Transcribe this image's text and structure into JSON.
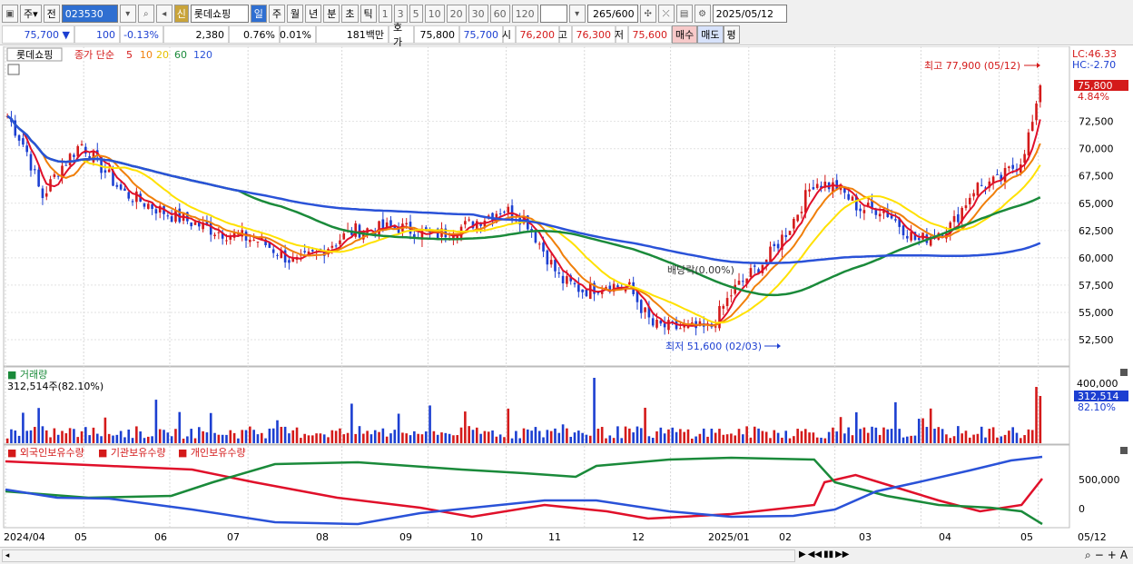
{
  "toolbar": {
    "type_label": "주",
    "all_label": "전",
    "code": "023530",
    "credit_badge": "신",
    "name": "롯데쇼핑",
    "periods": [
      "일",
      "주",
      "월",
      "년",
      "분",
      "초",
      "틱"
    ],
    "active_period": "일",
    "intervals": [
      "1",
      "3",
      "5",
      "10",
      "20",
      "30",
      "60",
      "120"
    ],
    "count": "265/600",
    "date": "2025/05/12"
  },
  "quote": {
    "price": "75,700",
    "change": "100",
    "change_pct": "-0.13%",
    "volume": "2,380",
    "vol_pct": "0.76%",
    "turnover_pct": "0.01%",
    "amount": "181백만",
    "ask_label": "호가",
    "ask": "75,800",
    "bid": "75,700",
    "open_label": "시",
    "open": "76,200",
    "high_label": "고",
    "high": "76,300",
    "low_label": "저",
    "low": "75,600",
    "buy_label": "매수",
    "sell_label": "매도",
    "eval_label": "평"
  },
  "price_panel": {
    "stock_tag": "롯데쇼핑",
    "legend_title": "종가 단순",
    "ma_labels": [
      "5",
      "10",
      "20",
      "60",
      "120"
    ],
    "lc": "LC:46.33",
    "hc": "HC:-2.70",
    "current_price": "75,800",
    "current_pct": "4.84%",
    "max_label": "최고 77,900 (05/12)",
    "min_label": "최저 51,600 (02/03)",
    "dividend_label": "배당락(0.00%)",
    "y_ticks": [
      "72,500",
      "70,000",
      "67,500",
      "65,000",
      "62,500",
      "60,000",
      "57,500",
      "55,000",
      "52,500"
    ]
  },
  "volume_panel": {
    "title": "거래량",
    "value": "312,514주(82.10%)",
    "y_top": "400,000",
    "current": "312,514",
    "current_pct": "82.10%"
  },
  "investor_panel": {
    "legends": [
      "외국인보유수량",
      "기관보유수량",
      "개인보유수량"
    ],
    "y_ticks": [
      "500,000",
      "0"
    ]
  },
  "x_axis": [
    "2024/04",
    "05",
    "06",
    "07",
    "08",
    "09",
    "10",
    "11",
    "12",
    "2025/01",
    "02",
    "03",
    "04",
    "05",
    "05/12"
  ],
  "colors": {
    "up": "#d41a1a",
    "down": "#1c3fd1",
    "ma5": "#e0102a",
    "ma10": "#f07f0a",
    "ma20": "#ffe100",
    "ma60": "#1a8a3a",
    "ma120": "#2a52d8"
  }
}
